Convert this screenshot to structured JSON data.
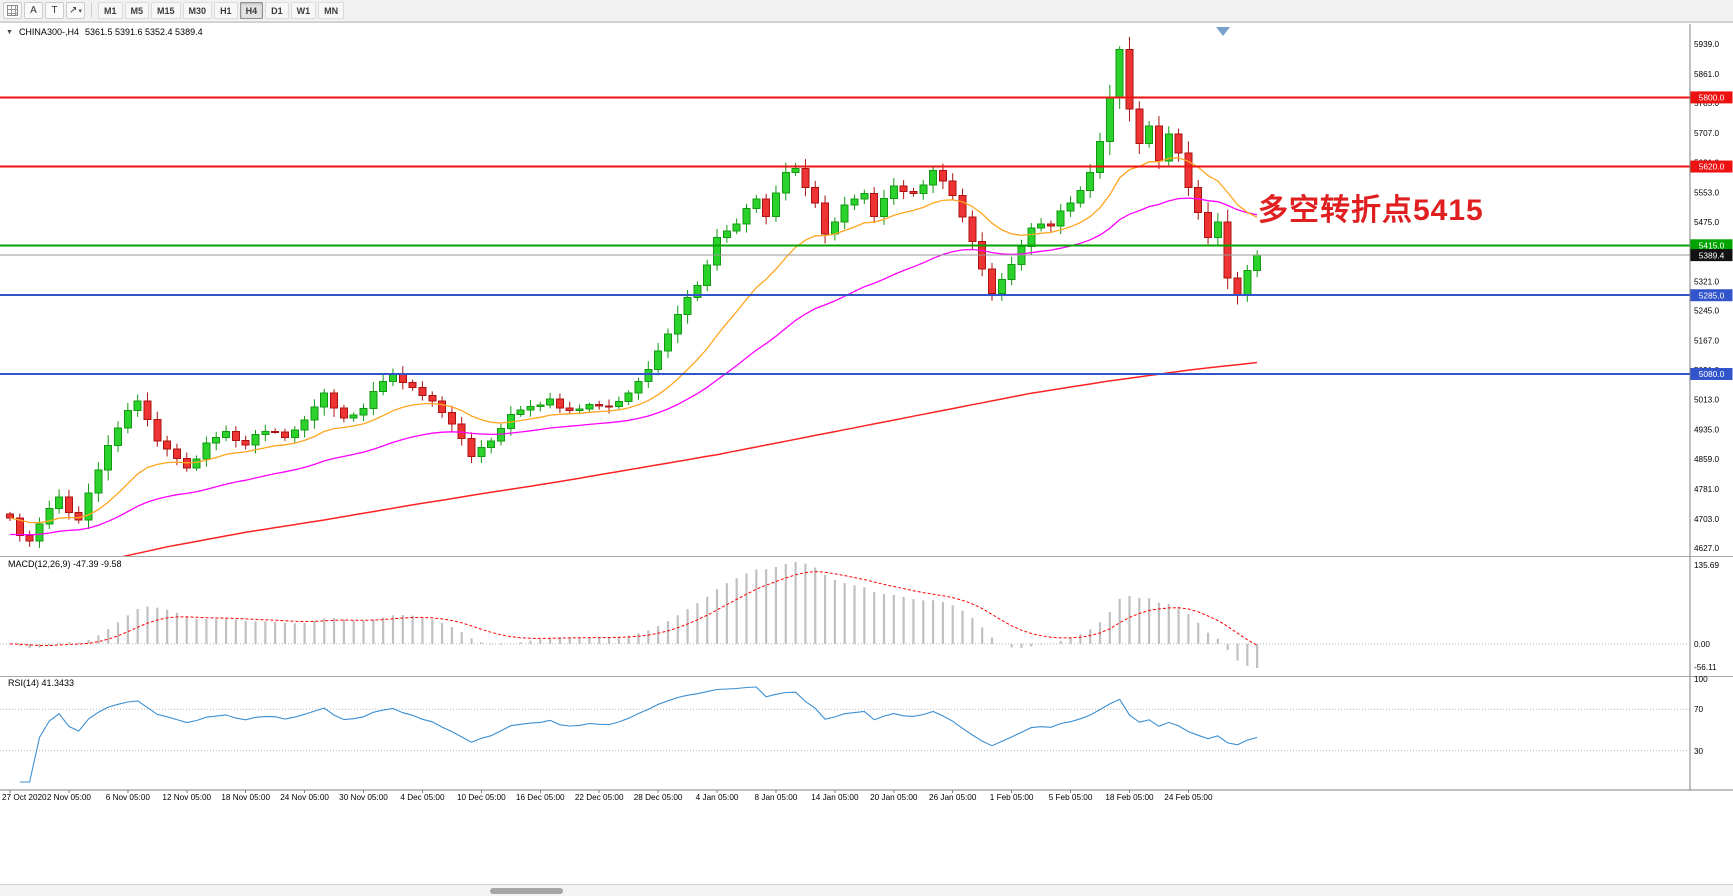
{
  "toolbar": {
    "tools": [
      {
        "name": "grid-icon",
        "type": "grid",
        "glyph": ""
      },
      {
        "name": "text-a-tool-button",
        "type": "label",
        "glyph": "A"
      },
      {
        "name": "text-t-tool-button",
        "type": "label",
        "glyph": "T"
      },
      {
        "name": "arrow-tool-button",
        "type": "label",
        "glyph": "↗"
      },
      {
        "name": "arrow-tool-caret-icon",
        "type": "caret",
        "glyph": "▾"
      }
    ],
    "timeframes": [
      "M1",
      "M5",
      "M15",
      "M30",
      "H1",
      "H4",
      "D1",
      "W1",
      "MN"
    ],
    "active_timeframe": "H4"
  },
  "chart_header": {
    "collapse_glyph": "▼",
    "symbol_period": "CHINA300-,H4",
    "ohlc": "5361.5 5391.6 5352.4 5389.4"
  },
  "annotation": {
    "text": "多空转折点5415",
    "color": "#e02020"
  },
  "indicators": {
    "macd": {
      "label": "MACD(12,26,9) -47.39 -9.58",
      "axis": [
        "135.69",
        "0.00",
        "-56.11"
      ]
    },
    "rsi": {
      "label": "RSI(14) 41.3433",
      "axis": [
        "100",
        "70",
        "30"
      ],
      "levels": [
        70,
        30
      ]
    }
  },
  "chart_data": {
    "type": "candlestick",
    "symbol": "CHINA300-",
    "period": "H4",
    "ohlc_display": {
      "open": 5361.5,
      "high": 5391.6,
      "low": 5352.4,
      "close": 5389.4
    },
    "ylim": [
      4627.0,
      5939.0
    ],
    "price_ticks": [
      5939.0,
      5861.0,
      5785.0,
      5707.0,
      5631.0,
      5553.0,
      5475.0,
      5399.0,
      5321.0,
      5245.0,
      5167.0,
      5091.0,
      5013.0,
      4935.0,
      4859.0,
      4781.0,
      4703.0,
      4627.0
    ],
    "time_ticks": [
      "27 Oct 2020",
      "2 Nov 05:00",
      "6 Nov 05:00",
      "12 Nov 05:00",
      "18 Nov 05:00",
      "24 Nov 05:00",
      "30 Nov 05:00",
      "4 Dec 05:00",
      "10 Dec 05:00",
      "16 Dec 05:00",
      "22 Dec 05:00",
      "28 Dec 05:00",
      "4 Jan 05:00",
      "8 Jan 05:00",
      "14 Jan 05:00",
      "20 Jan 05:00",
      "26 Jan 05:00",
      "1 Feb 05:00",
      "5 Feb 05:00",
      "18 Feb 05:00",
      "24 Feb 05:00"
    ],
    "n_candles": 128,
    "candles_per_tick": 6,
    "noise_seed": 20210225,
    "close_anchors": [
      [
        0,
        4705
      ],
      [
        1,
        4660
      ],
      [
        2,
        4645
      ],
      [
        3,
        4690
      ],
      [
        4,
        4730
      ],
      [
        5,
        4760
      ],
      [
        6,
        4720
      ],
      [
        7,
        4700
      ],
      [
        8,
        4770
      ],
      [
        9,
        4830
      ],
      [
        11,
        4940
      ],
      [
        13,
        5010
      ],
      [
        15,
        4905
      ],
      [
        17,
        4860
      ],
      [
        18,
        4835
      ],
      [
        20,
        4900
      ],
      [
        22,
        4930
      ],
      [
        24,
        4895
      ],
      [
        26,
        4930
      ],
      [
        28,
        4915
      ],
      [
        30,
        4960
      ],
      [
        32,
        5030
      ],
      [
        34,
        4965
      ],
      [
        36,
        4990
      ],
      [
        38,
        5060
      ],
      [
        39,
        5080
      ],
      [
        41,
        5045
      ],
      [
        43,
        5010
      ],
      [
        45,
        4950
      ],
      [
        47,
        4865
      ],
      [
        49,
        4905
      ],
      [
        51,
        4975
      ],
      [
        53,
        4995
      ],
      [
        55,
        5015
      ],
      [
        57,
        4985
      ],
      [
        59,
        5000
      ],
      [
        61,
        4995
      ],
      [
        63,
        5030
      ],
      [
        64,
        5060
      ],
      [
        66,
        5140
      ],
      [
        68,
        5235
      ],
      [
        70,
        5310
      ],
      [
        72,
        5435
      ],
      [
        74,
        5470
      ],
      [
        76,
        5535
      ],
      [
        77,
        5490
      ],
      [
        79,
        5605
      ],
      [
        80,
        5615
      ],
      [
        82,
        5525
      ],
      [
        83,
        5445
      ],
      [
        85,
        5520
      ],
      [
        87,
        5550
      ],
      [
        88,
        5490
      ],
      [
        90,
        5570
      ],
      [
        92,
        5550
      ],
      [
        94,
        5610
      ],
      [
        96,
        5545
      ],
      [
        98,
        5425
      ],
      [
        100,
        5290
      ],
      [
        102,
        5365
      ],
      [
        104,
        5460
      ],
      [
        106,
        5465
      ],
      [
        108,
        5525
      ],
      [
        110,
        5605
      ],
      [
        111,
        5685
      ],
      [
        112,
        5800
      ],
      [
        113,
        5925
      ],
      [
        114,
        5770
      ],
      [
        115,
        5680
      ],
      [
        116,
        5725
      ],
      [
        117,
        5635
      ],
      [
        118,
        5705
      ],
      [
        119,
        5655
      ],
      [
        120,
        5565
      ],
      [
        121,
        5500
      ],
      [
        122,
        5435
      ],
      [
        123,
        5475
      ],
      [
        124,
        5330
      ],
      [
        125,
        5285
      ],
      [
        126,
        5350
      ],
      [
        127,
        5389.4
      ]
    ],
    "extremes": {
      "highest": [
        113,
        5933
      ],
      "lowest": [
        2,
        4630
      ]
    },
    "levels": [
      {
        "price": 5800.0,
        "label": "5800.0",
        "color": "#ee1111"
      },
      {
        "price": 5620.0,
        "label": "5620.0",
        "color": "#ee1111"
      },
      {
        "price": 5415.0,
        "label": "5415.0",
        "color": "#00a400"
      },
      {
        "price": 5285.0,
        "label": "5285.0",
        "color": "#3355cc"
      },
      {
        "price": 5080.0,
        "label": "5080.0",
        "color": "#3355cc"
      }
    ],
    "current_price": {
      "value": 5389.4,
      "label": "5389.4",
      "badge_color": "#111111",
      "line_color": "#999999"
    },
    "moving_averages": {
      "fast_period": 16,
      "mid_period": 40,
      "mid_start_offset": -45,
      "slow_anchors": [
        [
          0,
          4540
        ],
        [
          8,
          4585
        ],
        [
          16,
          4630
        ],
        [
          24,
          4668
        ],
        [
          32,
          4700
        ],
        [
          40,
          4735
        ],
        [
          48,
          4768
        ],
        [
          56,
          4800
        ],
        [
          64,
          4835
        ],
        [
          72,
          4870
        ],
        [
          80,
          4910
        ],
        [
          88,
          4950
        ],
        [
          96,
          4990
        ],
        [
          104,
          5030
        ],
        [
          112,
          5062
        ],
        [
          120,
          5090
        ],
        [
          127,
          5110
        ]
      ],
      "colors": {
        "fast": "#ffa520",
        "mid": "#ff00ff",
        "slow": "#ff2222"
      }
    },
    "macd": {
      "fast": 12,
      "slow": 26,
      "signal": 9
    },
    "rsi": {
      "period": 14
    },
    "colors": {
      "bull": "#2bd22b",
      "bull_border": "#119911",
      "bear": "#ee3333",
      "bear_border": "#aa1111",
      "macd_hist": "#c0c0c0",
      "macd_signal": "#ff0000",
      "rsi_line": "#3d8fd1",
      "grid_dash": "#b8b8b8",
      "axis_line": "#808080"
    }
  }
}
